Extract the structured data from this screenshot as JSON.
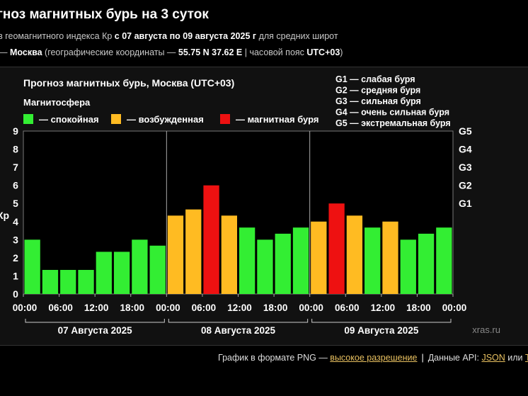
{
  "header": {
    "title": "гноз магнитных бурь на 3 суток",
    "line1_prefix": "з геомагнитного индекса Кр ",
    "line1_bold": "с 07 августа по 09 августа 2025 г",
    "line1_suffix": " для средних широт",
    "line2_dash": "— ",
    "line2_city": "Москва",
    "line2_geo": " (географические координаты — ",
    "line2_coords": "55.75 N 37.62 E",
    "line2_tz_label": " | часовой пояс ",
    "line2_tz": "UTC+03",
    "line2_close": ")"
  },
  "footer": {
    "png_text": "График в формате PNG — ",
    "png_link": "высокое разрешение",
    "separator": "|",
    "api_text": "Данные API: ",
    "json_link": "JSON",
    "or_text": " или ",
    "txt_link": "TX"
  },
  "chart_data": {
    "type": "bar",
    "title": "Прогноз магнитных бурь, Москва (UTC+03)",
    "legend_title": "Магнитосфера",
    "legend": [
      {
        "label": "— спокойная",
        "color": "#33ee33"
      },
      {
        "label": "— возбужденная",
        "color": "#ffbb22"
      },
      {
        "label": "— магнитная буря",
        "color": "#ee1111"
      }
    ],
    "g_scale": [
      "G1 — слабая буря",
      "G2 — средняя буря",
      "G3 — сильная буря",
      "G4 — очень сильная буря",
      "G5 — экстремальная буря"
    ],
    "ylabel": "Кр",
    "ylim": [
      0,
      9
    ],
    "yticks": [
      "0",
      "1",
      "2",
      "3",
      "4",
      "5",
      "6",
      "7",
      "8",
      "9"
    ],
    "right_ticks": [
      {
        "label": "G1",
        "value": 5
      },
      {
        "label": "G2",
        "value": 6
      },
      {
        "label": "G3",
        "value": 7
      },
      {
        "label": "G4",
        "value": 8
      },
      {
        "label": "G5",
        "value": 9
      }
    ],
    "xticks": [
      "00:00",
      "06:00",
      "12:00",
      "18:00",
      "00:00",
      "06:00",
      "12:00",
      "18:00",
      "00:00",
      "06:00",
      "12:00",
      "18:00",
      "00:00"
    ],
    "days": [
      "07 Августа 2025",
      "08 Августа 2025",
      "09 Августа 2025"
    ],
    "values": [
      3.0,
      1.33,
      1.33,
      1.33,
      2.33,
      2.33,
      3.0,
      2.67,
      4.33,
      4.67,
      6.0,
      4.33,
      3.67,
      3.0,
      3.33,
      3.67,
      4.0,
      5.0,
      4.33,
      3.67,
      4.0,
      3.0,
      3.33,
      3.67
    ],
    "levels": [
      "calm",
      "calm",
      "calm",
      "calm",
      "calm",
      "calm",
      "calm",
      "calm",
      "excited",
      "excited",
      "storm",
      "excited",
      "calm",
      "calm",
      "calm",
      "calm",
      "excited",
      "storm",
      "excited",
      "calm",
      "excited",
      "calm",
      "calm",
      "calm"
    ],
    "level_colors": {
      "calm": "#33ee33",
      "excited": "#ffbb22",
      "storm": "#ee1111"
    },
    "watermark": "xras.ru"
  }
}
